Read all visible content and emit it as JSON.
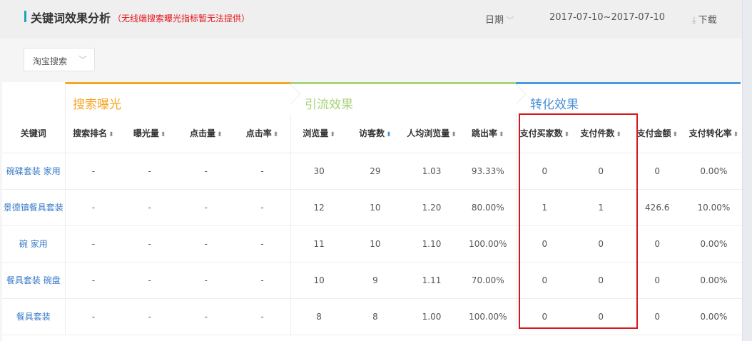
{
  "header": {
    "title": "关键词效果分析",
    "note": "（无线端搜索曝光指标暂无法提供）",
    "date_label": "日期",
    "date_range": "2017-07-10~2017-07-10",
    "download_label": "下载"
  },
  "filter": {
    "selected": "淘宝搜索"
  },
  "groups": [
    "搜索曝光",
    "引流效果",
    "转化效果"
  ],
  "group_colors": {
    "search": "#f5a623",
    "traffic": "#a8d37a",
    "conversion": "#4a90d9"
  },
  "columns": [
    "关键词",
    "搜索排名",
    "曝光量",
    "点击量",
    "点击率",
    "浏览量",
    "访客数",
    "人均浏览量",
    "跳出率",
    "支付买家数",
    "支付件数",
    "支付金额",
    "支付转化率"
  ],
  "active_sort_column": "访客数",
  "rows": [
    [
      "碗碟套装 家用",
      "-",
      "-",
      "-",
      "-",
      "30",
      "29",
      "1.03",
      "93.33%",
      "0",
      "0",
      "0",
      "0.00%"
    ],
    [
      "景德镇餐具套装",
      "-",
      "-",
      "-",
      "-",
      "12",
      "10",
      "1.20",
      "80.00%",
      "1",
      "1",
      "426.6",
      "10.00%"
    ],
    [
      "碗 家用",
      "-",
      "-",
      "-",
      "-",
      "11",
      "10",
      "1.10",
      "100.00%",
      "0",
      "0",
      "0",
      "0.00%"
    ],
    [
      "餐具套装 碗盘",
      "-",
      "-",
      "-",
      "-",
      "10",
      "9",
      "1.11",
      "70.00%",
      "0",
      "0",
      "0",
      "0.00%"
    ],
    [
      "餐具套装",
      "-",
      "-",
      "-",
      "-",
      "8",
      "8",
      "1.00",
      "100.00%",
      "0",
      "0",
      "0",
      "0.00%"
    ]
  ]
}
